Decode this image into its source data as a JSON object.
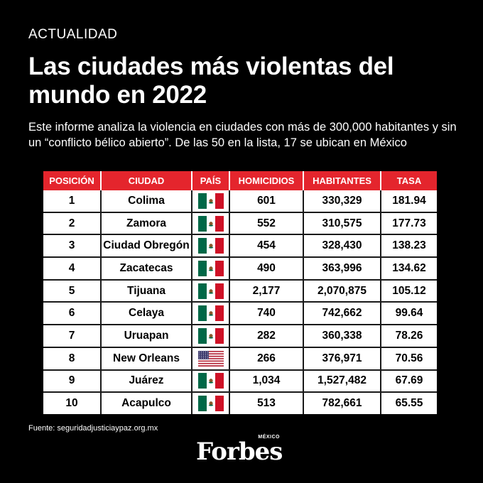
{
  "header": {
    "section": "ACTUALIDAD",
    "title": "Las ciudades más violentas del mundo en 2022",
    "subtitle": "Este informe analiza la violencia en ciudades con más de 300,000 habitantes y sin un “conflicto bélico abierto”. De las 50 en la lista, 17 se ubican en México"
  },
  "table": {
    "headers": {
      "position": "POSICIÓN",
      "city": "CIUDAD",
      "country": "PAÍS",
      "homicides": "HOMICIDIOS",
      "population": "HABITANTES",
      "rate": "TASA"
    },
    "rows": [
      {
        "position": "1",
        "city": "Colima",
        "flag": "mexico-flag-icon",
        "homicides": "601",
        "population": "330,329",
        "rate": "181.94"
      },
      {
        "position": "2",
        "city": "Zamora",
        "flag": "mexico-flag-icon",
        "homicides": "552",
        "population": "310,575",
        "rate": "177.73"
      },
      {
        "position": "3",
        "city": "Ciudad Obregón",
        "flag": "mexico-flag-icon",
        "homicides": "454",
        "population": "328,430",
        "rate": "138.23"
      },
      {
        "position": "4",
        "city": "Zacatecas",
        "flag": "mexico-flag-icon",
        "homicides": "490",
        "population": "363,996",
        "rate": "134.62"
      },
      {
        "position": "5",
        "city": "Tijuana",
        "flag": "mexico-flag-icon",
        "homicides": "2,177",
        "population": "2,070,875",
        "rate": "105.12"
      },
      {
        "position": "6",
        "city": "Celaya",
        "flag": "mexico-flag-icon",
        "homicides": "740",
        "population": "742,662",
        "rate": "99.64"
      },
      {
        "position": "7",
        "city": "Uruapan",
        "flag": "mexico-flag-icon",
        "homicides": "282",
        "population": "360,338",
        "rate": "78.26"
      },
      {
        "position": "8",
        "city": "New Orleans",
        "flag": "usa-flag-icon",
        "homicides": "266",
        "population": "376,971",
        "rate": "70.56"
      },
      {
        "position": "9",
        "city": "Juárez",
        "flag": "mexico-flag-icon",
        "homicides": "1,034",
        "population": "1,527,482",
        "rate": "67.69"
      },
      {
        "position": "10",
        "city": "Acapulco",
        "flag": "mexico-flag-icon",
        "homicides": "513",
        "population": "782,661",
        "rate": "65.55"
      }
    ]
  },
  "footer": {
    "source": "Fuente: seguridadjusticiaypaz.org.mx",
    "logo_word": "Forbes",
    "logo_country": "MÉXICO"
  },
  "colors": {
    "background": "#000000",
    "header_red": "#e4252d",
    "mexico_green": "#006847",
    "mexico_red": "#ce1126",
    "usa_red": "#b22234",
    "usa_blue": "#3c3b6e"
  }
}
